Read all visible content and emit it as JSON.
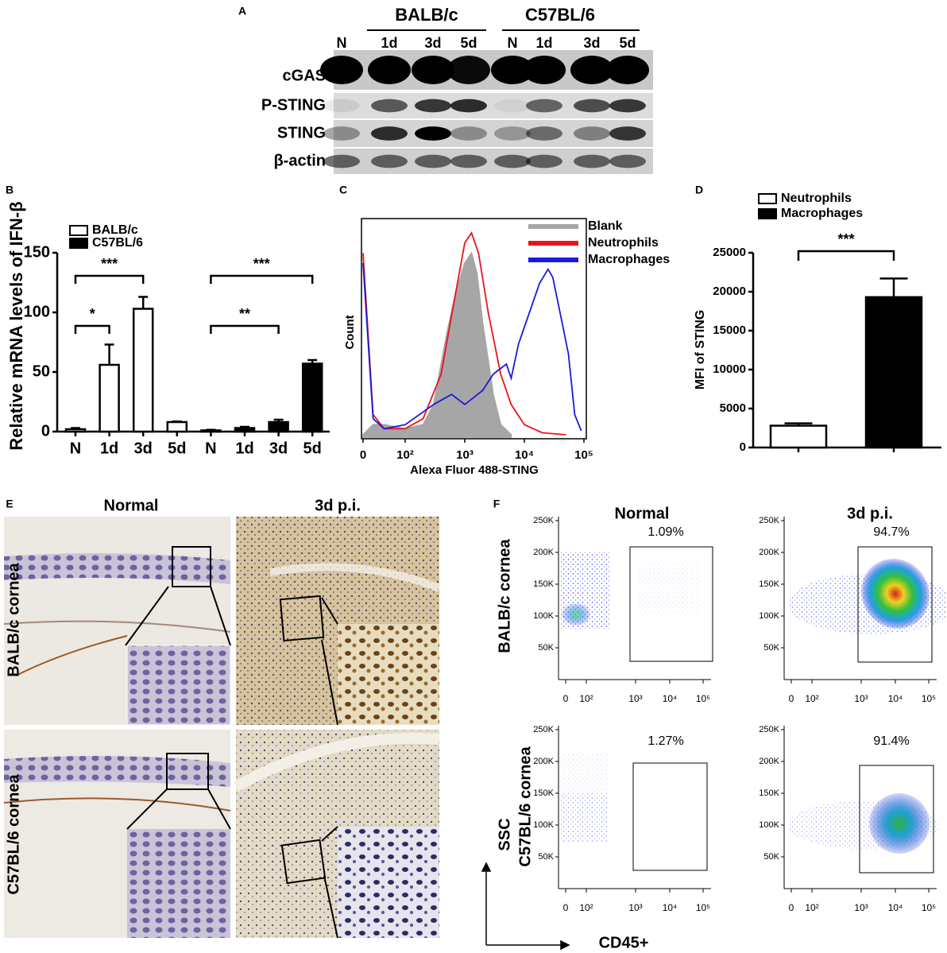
{
  "panel_A": {
    "label": "A",
    "groups": [
      "BALB/c",
      "C57BL/6"
    ],
    "lanes": [
      "N",
      "1d",
      "3d",
      "5d",
      "N",
      "1d",
      "3d",
      "5d"
    ],
    "rows": [
      "cGAS",
      "P-STING",
      "STING",
      "β-actin"
    ]
  },
  "chart_data": [
    {
      "label": "B",
      "type": "bar",
      "y_label": "Relative mRNA levels of IFN-β",
      "categories": [
        "N",
        "1d",
        "3d",
        "5d",
        "N",
        "1d",
        "3d",
        "5d"
      ],
      "series": [
        {
          "name": "BALB/c",
          "color": "#ffffff",
          "values": [
            2,
            56,
            103,
            8,
            null,
            null,
            null,
            null
          ],
          "errors": [
            1,
            17,
            10,
            0.5,
            null,
            null,
            null,
            null
          ]
        },
        {
          "name": "C57BL/6",
          "color": "#000000",
          "values": [
            null,
            null,
            null,
            null,
            1,
            3,
            8,
            57
          ],
          "errors": [
            null,
            null,
            null,
            null,
            0.5,
            1,
            2,
            3
          ]
        }
      ],
      "ylim": [
        0,
        150
      ],
      "yticks": [
        0,
        50,
        100,
        150
      ],
      "annotations": [
        "*",
        "***",
        "**",
        "***"
      ]
    },
    {
      "label": "C",
      "type": "line",
      "x_label": "Alexa Fluor 488-STING",
      "y_label": "Count",
      "xscale": "biexponential",
      "xlim": [
        0,
        100000
      ],
      "xticks": [
        0,
        {
          "value": 100,
          "label": "10²"
        },
        {
          "value": 1000,
          "label": "10³"
        },
        {
          "value": 10000,
          "label": "10⁴"
        },
        {
          "value": 100000,
          "label": "10⁵"
        }
      ],
      "ylim": [
        0,
        100
      ],
      "series": [
        {
          "name": "Blank",
          "color": "#a6a6a6",
          "fill": true,
          "x": [
            1,
            3,
            10,
            100,
            200,
            300,
            500,
            700,
            1000,
            1300,
            1600,
            2000,
            3000,
            4000,
            6000
          ],
          "values": [
            0,
            5,
            5,
            3,
            5,
            15,
            50,
            70,
            85,
            90,
            80,
            55,
            20,
            5,
            0
          ]
        },
        {
          "name": "Neutrophils",
          "color": "#e8141c",
          "fill": false,
          "x": [
            1,
            3,
            10,
            100,
            200,
            400,
            700,
            1000,
            1300,
            1700,
            2500,
            4000,
            6000,
            10000,
            20000,
            50000
          ],
          "values": [
            90,
            10,
            3,
            3,
            8,
            30,
            70,
            95,
            100,
            90,
            60,
            30,
            15,
            5,
            1,
            0
          ]
        },
        {
          "name": "Macrophages",
          "color": "#1a1adc",
          "fill": false,
          "x": [
            1,
            3,
            10,
            100,
            300,
            600,
            1000,
            2000,
            3000,
            5000,
            6000,
            8000,
            12000,
            18000,
            25000,
            30000,
            40000,
            55000,
            70000,
            90000
          ],
          "values": [
            85,
            8,
            3,
            5,
            15,
            20,
            15,
            22,
            30,
            35,
            28,
            45,
            60,
            75,
            82,
            78,
            60,
            40,
            10,
            2
          ]
        }
      ]
    },
    {
      "label": "D",
      "type": "bar",
      "y_label": "MFI of STING",
      "categories": [
        null,
        null
      ],
      "series": [
        {
          "name": "Neutrophils",
          "color": "#ffffff",
          "values": [
            2800,
            null
          ],
          "errors": [
            300,
            null
          ]
        },
        {
          "name": "Macrophages",
          "color": "#000000",
          "values": [
            null,
            19300
          ],
          "errors": [
            null,
            2400
          ]
        }
      ],
      "ylim": [
        0,
        25000
      ],
      "yticks": [
        0,
        5000,
        10000,
        15000,
        20000,
        25000
      ],
      "annotations": [
        "***"
      ]
    }
  ],
  "panel_E": {
    "label": "E",
    "columns": [
      "Normal",
      "3d p.i."
    ],
    "rows": [
      "BALB/c cornea",
      "C57BL/6 cornea"
    ]
  },
  "panel_F": {
    "label": "F",
    "columns": [
      "Normal",
      "3d p.i."
    ],
    "rows": [
      "BALB/c cornea",
      "C57BL/6 cornea"
    ],
    "y_axis": "SSC",
    "x_axis": "CD45+",
    "percentages": [
      [
        "1.09%",
        "94.7%"
      ],
      [
        "1.27%",
        "91.4%"
      ]
    ],
    "yticks": [
      "250K",
      "200K",
      "150K",
      "100K",
      "50K"
    ],
    "xticks": [
      "0",
      "10²",
      "10³",
      "10⁴",
      "10⁵"
    ]
  }
}
